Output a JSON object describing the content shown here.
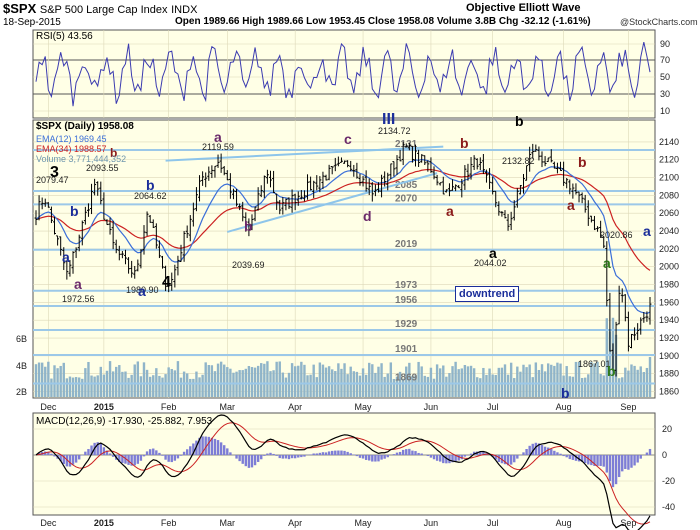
{
  "header": {
    "symbol": "$SPX",
    "name": "S&P 500 Large Cap Index",
    "exchange": "INDX",
    "date": "18-Sep-2015",
    "quote": "Open 1989.66  High 1989.66  Low 1953.45  Close 1958.08  Volume 3.8B  Chg -32.12 (-1.61%)",
    "brand": "Objective Elliott Wave",
    "credit": "@StockCharts.com"
  },
  "rsi": {
    "label": "RSI(5) 43.56",
    "ticks": [
      "90",
      "70",
      "50",
      "30",
      "10"
    ],
    "levels": [
      70,
      30
    ]
  },
  "price_panel": {
    "legend_main": "$SPX (Daily) 1958.08",
    "legend_ema12": "EMA(12) 1969.45",
    "legend_ema34": "EMA(34) 1988.57",
    "legend_volume": "Volume 3,771,444,352",
    "y_ticks": [
      "2140",
      "2120",
      "2100",
      "2080",
      "2060",
      "2040",
      "2020",
      "2000",
      "1980",
      "1960",
      "1940",
      "1920",
      "1900",
      "1880",
      "1860"
    ],
    "volume_ticks": [
      "6B",
      "4B",
      "2B"
    ],
    "x_ticks": [
      "Dec",
      "2015",
      "Feb",
      "Mar",
      "Apr",
      "May",
      "Jun",
      "Jul",
      "Aug",
      "Sep"
    ],
    "levels": [
      {
        "label": "2131",
        "value": 2131
      },
      {
        "label": "2085",
        "value": 2085
      },
      {
        "label": "2070",
        "value": 2070
      },
      {
        "label": "2019",
        "value": 2019
      },
      {
        "label": "1973",
        "value": 1973
      },
      {
        "label": "1956",
        "value": 1956
      },
      {
        "label": "1929",
        "value": 1929
      },
      {
        "label": "1901",
        "value": 1901
      },
      {
        "label": "1869",
        "value": 1869
      }
    ],
    "price_labels": [
      "2079.47",
      "2093.55",
      "2064.62",
      "1972.56",
      "1980.90",
      "2119.59",
      "2039.69",
      "2134.72",
      "2044.02",
      "2132.82",
      "2020.86",
      "1867.01"
    ],
    "wave_labels": [
      "3",
      "b",
      "a",
      "a",
      "b",
      "a",
      "4",
      "a",
      "b",
      "b",
      "c",
      "d",
      "III",
      "b",
      "a",
      "b",
      "a",
      "a",
      "b",
      "a",
      "a",
      "b",
      "b",
      "a"
    ],
    "callout": "downtrend",
    "colors": {
      "price": "#000000",
      "ema12": "#3b6fd8",
      "ema34": "#cc2222",
      "volume": "#8fb4c9",
      "level_line": "#9cc8e8",
      "background": "#ffffe6"
    }
  },
  "macd": {
    "label": "MACD(12,26,9) -17.930, -25.882, 7.953",
    "y_ticks": [
      "20",
      "0",
      "-20",
      "-40"
    ],
    "x_ticks": [
      "Dec",
      "2015",
      "Feb",
      "Mar",
      "Apr",
      "May",
      "Jun",
      "Jul",
      "Aug",
      "Sep"
    ]
  },
  "chart_data": {
    "type": "line",
    "title": "$SPX S&P 500 Large Cap Index INDX",
    "x_range": [
      "2014-12",
      "2015-09-18"
    ],
    "ylim": [
      1855,
      2150
    ],
    "series": [
      {
        "name": "$SPX (Daily)",
        "x": [
          "2014-12-01",
          "2014-12-05",
          "2014-12-16",
          "2014-12-29",
          "2015-01-06",
          "2015-01-16",
          "2015-01-22",
          "2015-01-30",
          "2015-02-02",
          "2015-02-17",
          "2015-02-25",
          "2015-03-11",
          "2015-03-20",
          "2015-03-26",
          "2015-04-14",
          "2015-04-27",
          "2015-05-06",
          "2015-05-21",
          "2015-06-01",
          "2015-06-09",
          "2015-06-23",
          "2015-07-08",
          "2015-07-20",
          "2015-08-05",
          "2015-08-20",
          "2015-08-24",
          "2015-08-28",
          "2015-09-01",
          "2015-09-10",
          "2015-09-17",
          "2015-09-18"
        ],
        "values": [
          2060,
          2079,
          1990,
          2093,
          2020,
          1990,
          2064,
          1985,
          1981,
          2100,
          2119,
          2039,
          2108,
          2065,
          2100,
          2118,
          2080,
          2134,
          2110,
          2080,
          2120,
          2044,
          2132,
          2090,
          2030,
          1867,
          1990,
          1915,
          1950,
          1995,
          1958
        ]
      }
    ],
    "ema12_last": 1969.45,
    "ema34_last": 1988.57,
    "volume_last": 3771444352,
    "macd_last": {
      "macd": -17.93,
      "signal": -25.882,
      "histogram": 7.953
    },
    "rsi_last": 43.56
  }
}
